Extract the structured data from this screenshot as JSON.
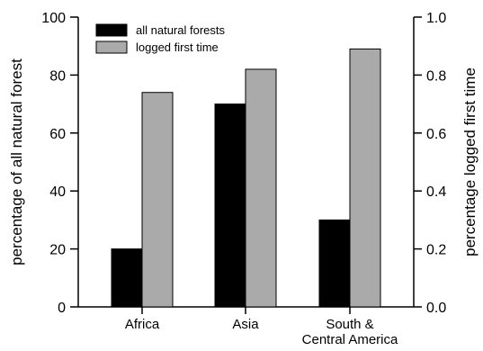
{
  "chart_data": {
    "type": "bar",
    "categories": [
      "Africa",
      "Asia",
      "South & Central America"
    ],
    "category_lines": [
      [
        "Africa"
      ],
      [
        "Asia"
      ],
      [
        "South &",
        "Central America"
      ]
    ],
    "series": [
      {
        "name": "all natural forests",
        "axis": "left",
        "values": [
          20,
          70,
          30
        ],
        "color": "#000000"
      },
      {
        "name": "logged first time",
        "axis": "right",
        "values": [
          0.74,
          0.82,
          0.89
        ],
        "color": "#aaaaaa"
      }
    ],
    "ylabel": "percentage of all natural forest",
    "ylabel_right": "percentage logged first time",
    "ylim": [
      0,
      100
    ],
    "ylim_right": [
      0,
      1.0
    ],
    "yticks": [
      "0",
      "20",
      "40",
      "60",
      "80",
      "100"
    ],
    "yticks_right": [
      "0.0",
      "0.2",
      "0.4",
      "0.6",
      "0.8",
      "1.0"
    ],
    "legend_position": "top-left",
    "grid": false
  }
}
